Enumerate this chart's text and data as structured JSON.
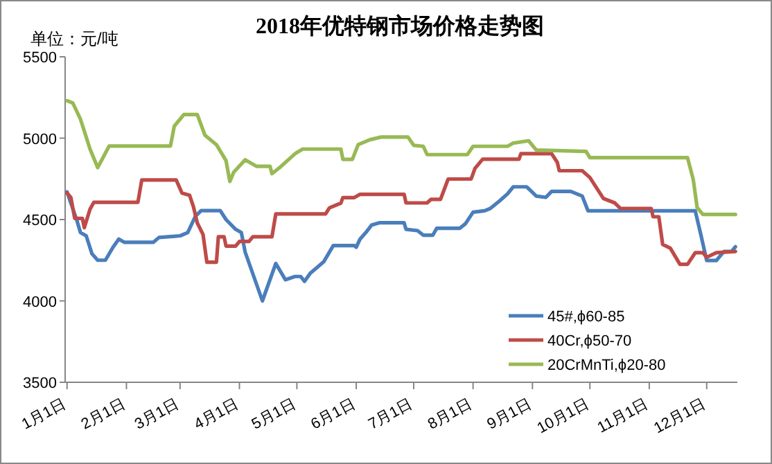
{
  "chart_data": {
    "type": "line",
    "title": "2018年优特钢市场价格走势图",
    "ylabel": "单位：元/吨",
    "legend": "bottom right",
    "xlim": [
      "2017-12-31",
      "2018-12-17"
    ],
    "ylim": [
      3500,
      5500
    ],
    "yticks": [
      3500,
      4000,
      4500,
      5000,
      5500
    ],
    "xticks": [
      {
        "value": "2018-01-01",
        "label": "1月1日"
      },
      {
        "value": "2018-02-01",
        "label": "2月1日"
      },
      {
        "value": "2018-03-01",
        "label": "3月1日"
      },
      {
        "value": "2018-04-01",
        "label": "4月1日"
      },
      {
        "value": "2018-05-01",
        "label": "5月1日"
      },
      {
        "value": "2018-06-01",
        "label": "6月1日"
      },
      {
        "value": "2018-07-01",
        "label": "7月1日"
      },
      {
        "value": "2018-08-01",
        "label": "8月1日"
      },
      {
        "value": "2018-09-01",
        "label": "9月1日"
      },
      {
        "value": "2018-10-01",
        "label": "10月1日"
      },
      {
        "value": "2018-11-01",
        "label": "11月1日"
      },
      {
        "value": "2018-12-01",
        "label": "12月1日"
      }
    ],
    "series": [
      {
        "name": "45#,ϕ60-85",
        "color": "#4a7ebb",
        "x": [
          "2018-01-01",
          "2018-01-03",
          "2018-01-06",
          "2018-01-08",
          "2018-01-11",
          "2018-01-14",
          "2018-01-17",
          "2018-01-21",
          "2018-01-25",
          "2018-01-28",
          "2018-01-31",
          "2018-02-15",
          "2018-02-18",
          "2018-03-01",
          "2018-03-05",
          "2018-03-09",
          "2018-03-12",
          "2018-03-22",
          "2018-03-25",
          "2018-03-30",
          "2018-04-02",
          "2018-04-04",
          "2018-04-10",
          "2018-04-13",
          "2018-04-20",
          "2018-04-25",
          "2018-04-30",
          "2018-05-03",
          "2018-05-05",
          "2018-05-08",
          "2018-05-11",
          "2018-05-15",
          "2018-05-20",
          "2018-05-31",
          "2018-06-01",
          "2018-06-03",
          "2018-06-06",
          "2018-06-09",
          "2018-06-13",
          "2018-06-26",
          "2018-06-27",
          "2018-07-03",
          "2018-07-06",
          "2018-07-11",
          "2018-07-13",
          "2018-07-25",
          "2018-07-28",
          "2018-08-01",
          "2018-08-07",
          "2018-08-10",
          "2018-08-15",
          "2018-08-19",
          "2018-08-22",
          "2018-08-29",
          "2018-09-03",
          "2018-09-08",
          "2018-09-11",
          "2018-09-21",
          "2018-09-27",
          "2018-09-30",
          "2018-11-25",
          "2018-11-28",
          "2018-12-01",
          "2018-12-06",
          "2018-12-10",
          "2018-12-14",
          "2018-12-16"
        ],
        "values": [
          4670,
          4600,
          4500,
          4420,
          4400,
          4290,
          4250,
          4250,
          4330,
          4380,
          4360,
          4360,
          4390,
          4400,
          4420,
          4520,
          4555,
          4555,
          4500,
          4440,
          4420,
          4300,
          4100,
          4000,
          4230,
          4130,
          4150,
          4150,
          4120,
          4170,
          4200,
          4240,
          4340,
          4340,
          4330,
          4380,
          4420,
          4466,
          4480,
          4480,
          4440,
          4432,
          4404,
          4404,
          4446,
          4446,
          4474,
          4545,
          4554,
          4568,
          4616,
          4658,
          4701,
          4701,
          4644,
          4636,
          4673,
          4673,
          4644,
          4554,
          4554,
          4404,
          4248,
          4248,
          4304,
          4304,
          4333
        ]
      },
      {
        "name": "40Cr,ϕ50-70",
        "color": "#be4b48",
        "x": [
          "2018-01-01",
          "2018-01-03",
          "2018-01-05",
          "2018-01-09",
          "2018-01-10",
          "2018-01-13",
          "2018-01-15",
          "2018-02-07",
          "2018-02-09",
          "2018-02-27",
          "2018-03-02",
          "2018-03-06",
          "2018-03-08",
          "2018-03-10",
          "2018-03-13",
          "2018-03-15",
          "2018-03-20",
          "2018-03-21",
          "2018-03-24",
          "2018-03-25",
          "2018-03-30",
          "2018-04-01",
          "2018-04-06",
          "2018-04-08",
          "2018-04-18",
          "2018-04-20",
          "2018-05-16",
          "2018-05-18",
          "2018-05-24",
          "2018-05-25",
          "2018-05-31",
          "2018-06-03",
          "2018-06-26",
          "2018-06-27",
          "2018-07-08",
          "2018-07-10",
          "2018-07-15",
          "2018-07-19",
          "2018-07-31",
          "2018-08-02",
          "2018-08-06",
          "2018-08-25",
          "2018-08-26",
          "2018-09-11",
          "2018-09-14",
          "2018-09-15",
          "2018-09-27",
          "2018-10-01",
          "2018-10-08",
          "2018-10-14",
          "2018-10-17",
          "2018-11-02",
          "2018-11-03",
          "2018-11-06",
          "2018-11-08",
          "2018-11-12",
          "2018-11-17",
          "2018-11-21",
          "2018-11-25",
          "2018-11-29",
          "2018-12-01",
          "2018-12-06",
          "2018-12-16"
        ],
        "values": [
          4663,
          4635,
          4507,
          4507,
          4450,
          4564,
          4606,
          4606,
          4743,
          4743,
          4663,
          4649,
          4578,
          4479,
          4408,
          4238,
          4238,
          4394,
          4394,
          4337,
          4337,
          4365,
          4365,
          4394,
          4394,
          4535,
          4535,
          4572,
          4601,
          4635,
          4635,
          4655,
          4655,
          4602,
          4602,
          4624,
          4624,
          4749,
          4749,
          4814,
          4871,
          4871,
          4905,
          4905,
          4851,
          4800,
          4800,
          4758,
          4630,
          4602,
          4568,
          4568,
          4517,
          4517,
          4347,
          4324,
          4225,
          4225,
          4296,
          4296,
          4268,
          4296,
          4304
        ]
      },
      {
        "name": "20CrMnTi,ϕ20-80",
        "color": "#98b954",
        "x": [
          "2018-01-01",
          "2018-01-04",
          "2018-01-08",
          "2018-01-13",
          "2018-01-17",
          "2018-01-23",
          "2018-02-24",
          "2018-02-26",
          "2018-03-03",
          "2018-03-10",
          "2018-03-14",
          "2018-03-20",
          "2018-03-25",
          "2018-03-27",
          "2018-03-29",
          "2018-04-04",
          "2018-04-10",
          "2018-04-17",
          "2018-04-18",
          "2018-04-22",
          "2018-04-30",
          "2018-05-04",
          "2018-05-24",
          "2018-05-25",
          "2018-05-30",
          "2018-06-02",
          "2018-06-08",
          "2018-06-14",
          "2018-06-28",
          "2018-07-01",
          "2018-07-06",
          "2018-07-08",
          "2018-07-29",
          "2018-08-01",
          "2018-08-19",
          "2018-08-22",
          "2018-08-30",
          "2018-09-03",
          "2018-09-29",
          "2018-10-01",
          "2018-11-21",
          "2018-11-24",
          "2018-11-26",
          "2018-11-29",
          "2018-12-16"
        ],
        "values": [
          5230,
          5216,
          5117,
          4933,
          4819,
          4952,
          4952,
          5074,
          5145,
          5145,
          5018,
          4960,
          4862,
          4734,
          4790,
          4867,
          4827,
          4827,
          4782,
          4819,
          4904,
          4933,
          4933,
          4870,
          4870,
          4960,
          4990,
          5007,
          5007,
          4956,
          4950,
          4899,
          4899,
          4950,
          4950,
          4970,
          4984,
          4927,
          4919,
          4880,
          4880,
          4744,
          4574,
          4531,
          4531
        ]
      }
    ]
  }
}
